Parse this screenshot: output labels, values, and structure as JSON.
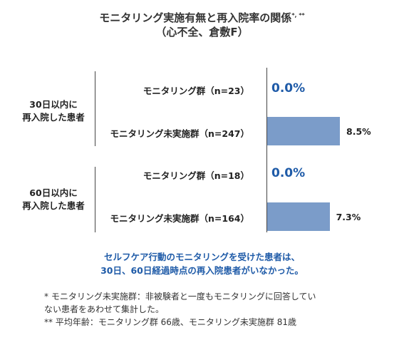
{
  "header": {
    "title_line1": "モニタリング実施有無と再入院率の関係",
    "title_sup": "*, **",
    "title_line2": "（心不全、倉敷F）"
  },
  "chart_data": {
    "type": "bar",
    "orientation": "horizontal",
    "groups": [
      {
        "label_line1": "30日以内に",
        "label_line2": "再入院した患者",
        "bars": [
          {
            "category": "モニタリング群（n=23）",
            "value": 0.0,
            "label": "0.0%"
          },
          {
            "category": "モニタリング未実施群（n=247）",
            "value": 8.5,
            "label": "8.5%"
          }
        ]
      },
      {
        "label_line1": "60日以内に",
        "label_line2": "再入院した患者",
        "bars": [
          {
            "category": "モニタリング群（n=18）",
            "value": 0.0,
            "label": "0.0%"
          },
          {
            "category": "モニタリング未実施群（n=164）",
            "value": 7.3,
            "label": "7.3%"
          }
        ]
      }
    ],
    "unit": "%",
    "xlim": [
      0,
      10
    ],
    "colors": {
      "bar": "#7b9cc9",
      "zero_label": "#1f5ba8"
    }
  },
  "note": {
    "line1": "セルフケア行動のモニタリングを受けた患者は、",
    "line2": "30日、60日経過時点の再入院患者がいなかった。"
  },
  "footnotes": {
    "line1": "* モニタリング未実施群：非被験者と一度もモニタリングに回答してい",
    "line2": "ない患者をあわせて集計した。",
    "line3": "** 平均年齢：モニタリング群 66歳、モニタリング未実施群 81歳"
  }
}
